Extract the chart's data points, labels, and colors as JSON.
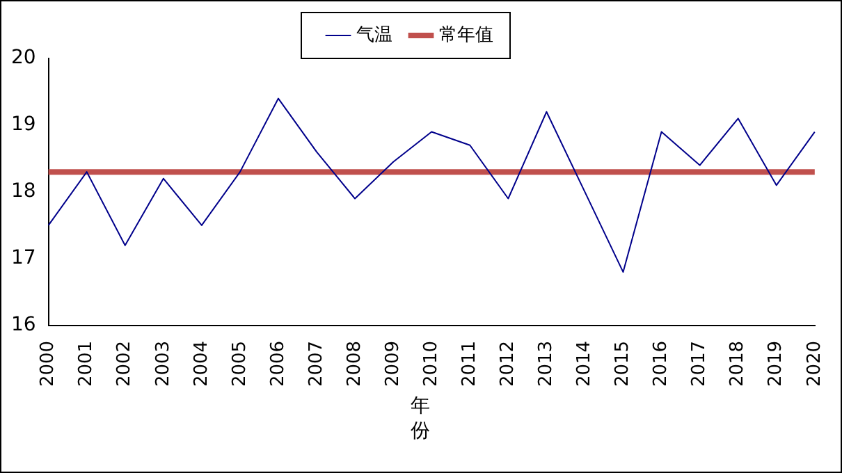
{
  "chart_data": {
    "type": "line",
    "xlabel": "年份",
    "categories": [
      "2000",
      "2001",
      "2002",
      "2003",
      "2004",
      "2005",
      "2006",
      "2007",
      "2008",
      "2009",
      "2010",
      "2011",
      "2012",
      "2013",
      "2014",
      "2015",
      "2016",
      "2017",
      "2018",
      "2019",
      "2020"
    ],
    "series": [
      {
        "name": "气温",
        "color": "#00008b",
        "values": [
          17.5,
          18.3,
          17.2,
          18.2,
          17.5,
          18.3,
          19.4,
          18.6,
          17.9,
          18.45,
          18.9,
          18.7,
          17.9,
          19.2,
          18.0,
          16.8,
          18.9,
          18.4,
          19.1,
          18.1,
          18.9
        ]
      },
      {
        "name": "常年值",
        "color": "#c0504d",
        "values": [
          18.3,
          18.3,
          18.3,
          18.3,
          18.3,
          18.3,
          18.3,
          18.3,
          18.3,
          18.3,
          18.3,
          18.3,
          18.3,
          18.3,
          18.3,
          18.3,
          18.3,
          18.3,
          18.3,
          18.3,
          18.3
        ]
      }
    ],
    "ylim": [
      16,
      20
    ],
    "yticks": [
      16,
      17,
      18,
      19,
      20
    ],
    "grid": false,
    "legend": "top",
    "marker": "none"
  }
}
